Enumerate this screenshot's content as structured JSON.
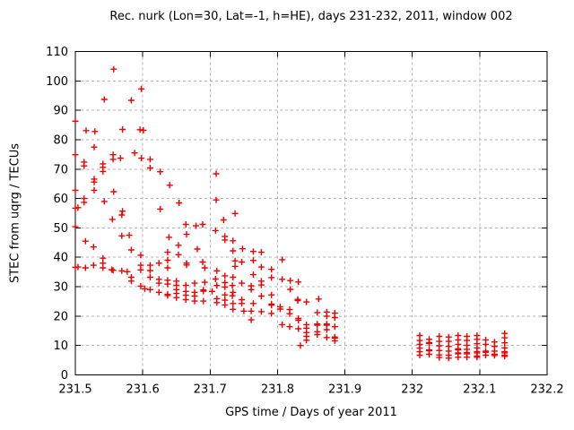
{
  "chart_data": {
    "type": "scatter",
    "title": "Rec. nurk (Lon=30, Lat=-1, h=HE), days 231-232, 2011, window 002",
    "xlabel": "GPS time / Days of year 2011",
    "ylabel": "STEC from uqrg / TECUs",
    "xlim": [
      231.5,
      232.2
    ],
    "ylim": [
      0,
      110
    ],
    "grid": true,
    "legend": "none",
    "marker": "plus",
    "marker_color": "#ee0000",
    "grid_color": "#b3b3b3",
    "axis_color": "#000000",
    "x_ticks": {
      "values": [
        231.5,
        231.6,
        231.7,
        231.8,
        231.9,
        232.0,
        232.1,
        232.2
      ],
      "labels": [
        "231.5",
        "231.6",
        "231.7",
        "231.8",
        "231.9",
        "232",
        "232.1",
        "232.2"
      ]
    },
    "y_ticks": {
      "values": [
        0,
        10,
        20,
        30,
        40,
        50,
        60,
        70,
        80,
        90,
        100,
        110
      ],
      "labels": [
        "0",
        "10",
        "20",
        "30",
        "40",
        "50",
        "60",
        "70",
        "80",
        "90",
        "100",
        "110"
      ]
    },
    "series": [
      {
        "name": "STEC from uqrg",
        "points": [
          [
            231.557,
            104.0
          ],
          [
            231.598,
            97.3
          ],
          [
            231.543,
            93.7
          ],
          [
            231.583,
            93.4
          ],
          [
            231.5,
            86.3
          ],
          [
            231.516,
            83.1
          ],
          [
            231.529,
            82.8
          ],
          [
            231.57,
            83.5
          ],
          [
            231.596,
            83.4
          ],
          [
            231.601,
            83.2
          ],
          [
            231.528,
            77.5
          ],
          [
            231.5,
            74.9
          ],
          [
            231.556,
            74.9
          ],
          [
            231.588,
            75.5
          ],
          [
            231.556,
            73.3
          ],
          [
            231.567,
            73.7
          ],
          [
            231.598,
            73.7
          ],
          [
            231.611,
            73.3
          ],
          [
            231.513,
            72.4
          ],
          [
            231.513,
            71.1
          ],
          [
            231.541,
            71.8
          ],
          [
            231.541,
            70.6
          ],
          [
            231.541,
            69.2
          ],
          [
            231.611,
            70.4
          ],
          [
            231.626,
            69.1
          ],
          [
            231.528,
            66.6
          ],
          [
            231.528,
            65.6
          ],
          [
            231.709,
            68.4
          ],
          [
            231.528,
            62.8
          ],
          [
            231.5,
            62.8
          ],
          [
            231.557,
            62.3
          ],
          [
            231.64,
            64.5
          ],
          [
            231.513,
            60.0
          ],
          [
            231.513,
            58.7
          ],
          [
            231.5,
            56.7
          ],
          [
            231.543,
            59.0
          ],
          [
            231.709,
            59.5
          ],
          [
            231.57,
            55.7
          ],
          [
            231.626,
            56.4
          ],
          [
            231.654,
            58.5
          ],
          [
            231.737,
            54.9
          ],
          [
            231.504,
            56.9
          ],
          [
            231.555,
            52.9
          ],
          [
            231.569,
            54.4
          ],
          [
            231.5,
            50.4
          ],
          [
            231.664,
            51.2
          ],
          [
            231.679,
            50.7
          ],
          [
            231.689,
            51.2
          ],
          [
            231.72,
            52.7
          ],
          [
            231.708,
            49.1
          ],
          [
            231.515,
            45.5
          ],
          [
            231.569,
            47.3
          ],
          [
            231.58,
            47.5
          ],
          [
            231.639,
            46.8
          ],
          [
            231.665,
            47.8
          ],
          [
            231.722,
            47.1
          ],
          [
            231.722,
            45.9
          ],
          [
            231.734,
            45.6
          ],
          [
            231.527,
            43.5
          ],
          [
            231.653,
            44.1
          ],
          [
            231.637,
            41.7
          ],
          [
            231.653,
            40.9
          ],
          [
            231.681,
            42.8
          ],
          [
            231.734,
            42.2
          ],
          [
            231.748,
            42.9
          ],
          [
            231.583,
            42.5
          ],
          [
            231.541,
            39.7
          ],
          [
            231.597,
            40.7
          ],
          [
            231.637,
            39.0
          ],
          [
            231.665,
            37.4
          ],
          [
            231.689,
            38.4
          ],
          [
            231.737,
            38.8
          ],
          [
            231.747,
            38.4
          ],
          [
            231.737,
            36.9
          ],
          [
            231.5,
            36.6
          ],
          [
            231.504,
            36.7
          ],
          [
            231.515,
            36.4
          ],
          [
            231.527,
            37.3
          ],
          [
            231.541,
            36.4
          ],
          [
            231.554,
            35.8
          ],
          [
            231.556,
            35.6
          ],
          [
            231.569,
            35.4
          ],
          [
            231.577,
            35.1
          ],
          [
            231.541,
            38.0
          ],
          [
            231.597,
            37.3
          ],
          [
            231.597,
            35.7
          ],
          [
            231.611,
            37.3
          ],
          [
            231.611,
            35.5
          ],
          [
            231.624,
            38.0
          ],
          [
            231.637,
            36.4
          ],
          [
            231.665,
            38.0
          ],
          [
            231.692,
            36.4
          ],
          [
            231.71,
            35.4
          ],
          [
            231.583,
            33.2
          ],
          [
            231.583,
            31.9
          ],
          [
            231.597,
            30.2
          ],
          [
            231.611,
            33.2
          ],
          [
            231.624,
            32.5
          ],
          [
            231.624,
            31.2
          ],
          [
            231.637,
            32.2
          ],
          [
            231.637,
            30.9
          ],
          [
            231.65,
            31.9
          ],
          [
            231.65,
            30.5
          ],
          [
            231.664,
            30.5
          ],
          [
            231.677,
            31.2
          ],
          [
            231.692,
            31.5
          ],
          [
            231.708,
            32.6
          ],
          [
            231.71,
            30.4
          ],
          [
            231.722,
            33.7
          ],
          [
            231.722,
            31.4
          ],
          [
            231.722,
            29.9
          ],
          [
            231.734,
            33.2
          ],
          [
            231.733,
            30.4
          ],
          [
            231.747,
            31.2
          ],
          [
            231.603,
            29.3
          ],
          [
            231.611,
            29.0
          ],
          [
            231.624,
            28.1
          ],
          [
            231.637,
            27.4
          ],
          [
            231.637,
            27.0
          ],
          [
            231.65,
            29.0
          ],
          [
            231.65,
            27.7
          ],
          [
            231.65,
            26.3
          ],
          [
            231.664,
            28.4
          ],
          [
            231.664,
            27.1
          ],
          [
            231.664,
            25.6
          ],
          [
            231.677,
            28.1
          ],
          [
            231.677,
            26.8
          ],
          [
            231.677,
            25.1
          ],
          [
            231.69,
            28.9
          ],
          [
            231.69,
            28.5
          ],
          [
            231.69,
            25.1
          ],
          [
            231.703,
            28.4
          ],
          [
            231.71,
            25.9
          ],
          [
            231.71,
            24.6
          ],
          [
            231.722,
            27.2
          ],
          [
            231.722,
            25.4
          ],
          [
            231.722,
            23.8
          ],
          [
            231.734,
            28.1
          ],
          [
            231.734,
            24.3
          ],
          [
            231.734,
            22.3
          ],
          [
            231.747,
            25.6
          ],
          [
            231.747,
            24.3
          ],
          [
            231.75,
            21.7
          ],
          [
            231.733,
            26.9
          ],
          [
            231.764,
            42.0
          ],
          [
            231.776,
            41.7
          ],
          [
            231.764,
            38.9
          ],
          [
            231.776,
            36.7
          ],
          [
            231.791,
            35.9
          ],
          [
            231.807,
            39.2
          ],
          [
            231.764,
            34.1
          ],
          [
            231.791,
            33.1
          ],
          [
            231.807,
            32.5
          ],
          [
            231.819,
            32.1
          ],
          [
            231.831,
            31.6
          ],
          [
            231.776,
            31.9
          ],
          [
            231.776,
            30.6
          ],
          [
            231.761,
            30.3
          ],
          [
            231.761,
            29.0
          ],
          [
            231.819,
            29.1
          ],
          [
            231.776,
            26.8
          ],
          [
            231.791,
            27.2
          ],
          [
            231.83,
            25.7
          ],
          [
            231.83,
            25.3
          ],
          [
            231.843,
            24.8
          ],
          [
            231.861,
            25.8
          ],
          [
            231.764,
            24.3
          ],
          [
            231.776,
            21.5
          ],
          [
            231.791,
            24.1
          ],
          [
            231.791,
            23.7
          ],
          [
            231.804,
            23.2
          ],
          [
            231.804,
            22.4
          ],
          [
            231.818,
            22.2
          ],
          [
            231.818,
            20.8
          ],
          [
            231.791,
            20.9
          ],
          [
            231.761,
            21.7
          ],
          [
            231.761,
            18.7
          ],
          [
            231.807,
            17.1
          ],
          [
            231.818,
            16.4
          ],
          [
            231.831,
            19.2
          ],
          [
            231.831,
            18.6
          ],
          [
            231.831,
            15.7
          ],
          [
            231.843,
            17.1
          ],
          [
            231.843,
            15.9
          ],
          [
            231.843,
            14.4
          ],
          [
            231.843,
            13.1
          ],
          [
            231.843,
            11.8
          ],
          [
            231.859,
            17.3
          ],
          [
            231.859,
            16.9
          ],
          [
            231.859,
            14.7
          ],
          [
            231.859,
            13.7
          ],
          [
            231.859,
            21.2
          ],
          [
            231.873,
            20.0
          ],
          [
            231.873,
            21.4
          ],
          [
            231.885,
            21.0
          ],
          [
            231.885,
            19.5
          ],
          [
            231.873,
            17.3
          ],
          [
            231.873,
            16.9
          ],
          [
            231.873,
            15.4
          ],
          [
            231.873,
            12.7
          ],
          [
            231.885,
            16.4
          ],
          [
            231.885,
            12.9
          ],
          [
            231.885,
            12.5
          ],
          [
            231.885,
            11.6
          ],
          [
            231.834,
            10.0
          ],
          [
            232.011,
            13.4
          ],
          [
            232.011,
            11.7
          ],
          [
            232.011,
            10.4
          ],
          [
            232.011,
            9.1
          ],
          [
            232.011,
            7.9
          ],
          [
            232.011,
            6.7
          ],
          [
            232.025,
            12.1
          ],
          [
            232.025,
            11.0
          ],
          [
            232.025,
            10.7
          ],
          [
            232.025,
            8.5
          ],
          [
            232.025,
            8.2
          ],
          [
            232.025,
            7.0
          ],
          [
            232.04,
            13.1
          ],
          [
            232.04,
            11.4
          ],
          [
            232.04,
            9.9
          ],
          [
            232.04,
            8.3
          ],
          [
            232.04,
            6.8
          ],
          [
            232.04,
            5.9
          ],
          [
            232.054,
            12.9
          ],
          [
            232.054,
            11.4
          ],
          [
            232.054,
            9.7
          ],
          [
            232.054,
            8.1
          ],
          [
            232.054,
            6.7
          ],
          [
            232.054,
            5.7
          ],
          [
            232.068,
            13.4
          ],
          [
            232.068,
            11.9
          ],
          [
            232.068,
            10.4
          ],
          [
            232.068,
            8.9
          ],
          [
            232.068,
            8.5
          ],
          [
            232.068,
            7.5
          ],
          [
            232.068,
            7.2
          ],
          [
            232.068,
            6.0
          ],
          [
            232.081,
            13.1
          ],
          [
            232.081,
            11.7
          ],
          [
            232.081,
            10.1
          ],
          [
            232.081,
            8.7
          ],
          [
            232.081,
            7.6
          ],
          [
            232.081,
            7.2
          ],
          [
            232.081,
            6.0
          ],
          [
            232.096,
            13.4
          ],
          [
            232.096,
            12.1
          ],
          [
            232.096,
            10.6
          ],
          [
            232.096,
            9.2
          ],
          [
            232.096,
            7.9
          ],
          [
            232.096,
            7.5
          ],
          [
            232.096,
            6.4
          ],
          [
            232.096,
            6.0
          ],
          [
            232.109,
            11.9
          ],
          [
            232.109,
            10.4
          ],
          [
            232.109,
            8.1
          ],
          [
            232.109,
            7.7
          ],
          [
            232.109,
            6.7
          ],
          [
            232.122,
            11.2
          ],
          [
            232.122,
            9.7
          ],
          [
            232.122,
            8.1
          ],
          [
            232.122,
            7.0
          ],
          [
            232.122,
            6.6
          ],
          [
            232.137,
            14.1
          ],
          [
            232.137,
            12.6
          ],
          [
            232.137,
            10.9
          ],
          [
            232.137,
            9.2
          ],
          [
            232.137,
            7.9
          ],
          [
            232.137,
            7.5
          ],
          [
            232.137,
            6.7
          ],
          [
            232.137,
            6.3
          ]
        ]
      }
    ]
  }
}
